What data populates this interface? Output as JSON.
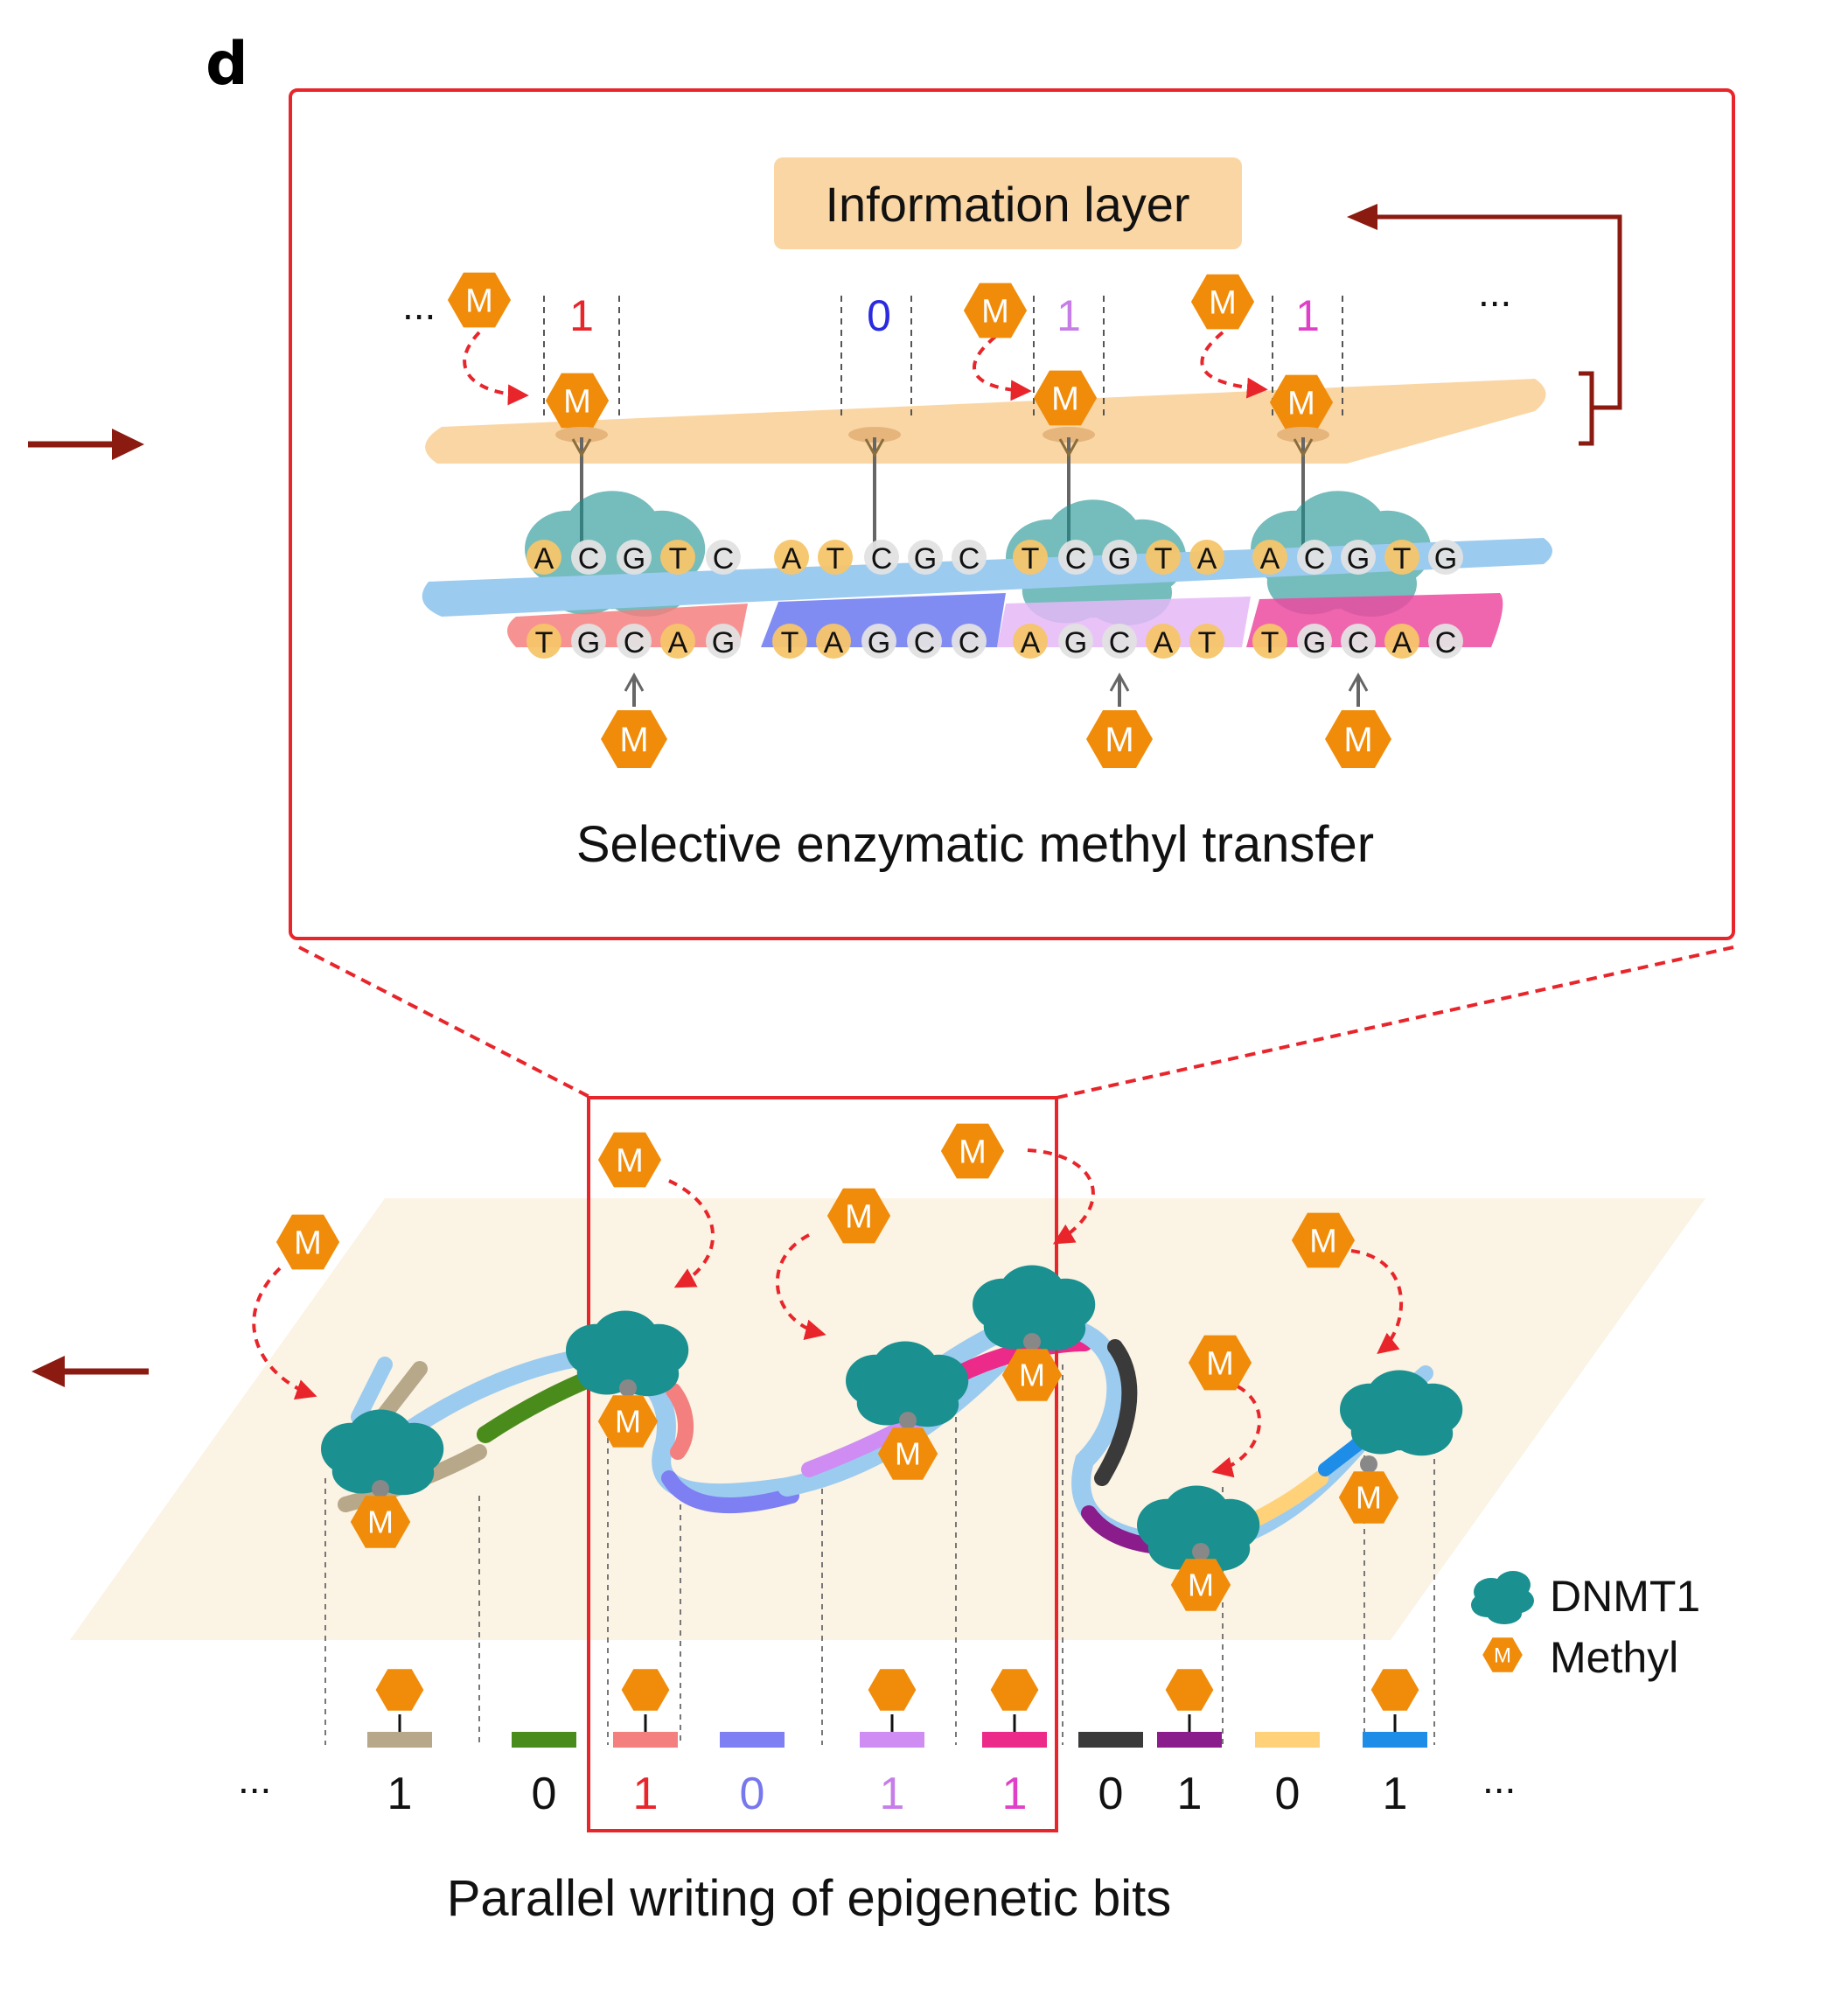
{
  "panel_label": "d",
  "top": {
    "info_layer_label": "Information layer",
    "caption": "Selective enzymatic methyl transfer",
    "ellipsis_left": "...",
    "ellipsis_right": "...",
    "methyl_symbol": "M",
    "bits": [
      {
        "value": "1",
        "color": "#e8252b"
      },
      {
        "value": "0",
        "color": "#2a2ae0"
      },
      {
        "value": "1",
        "color": "#c77de8"
      },
      {
        "value": "1",
        "color": "#e040c8"
      }
    ],
    "top_strand": [
      "A",
      "C",
      "G",
      "T",
      "C",
      "A",
      "T",
      "C",
      "G",
      "C",
      "T",
      "C",
      "G",
      "T",
      "A",
      "A",
      "C",
      "G",
      "T",
      "G"
    ],
    "bottom_strand": [
      "T",
      "G",
      "C",
      "A",
      "G",
      "T",
      "A",
      "G",
      "C",
      "C",
      "A",
      "G",
      "C",
      "A",
      "T",
      "T",
      "G",
      "C",
      "A",
      "C"
    ]
  },
  "bottom": {
    "caption": "Parallel writing of epigenetic bits",
    "ellipsis_left": "...",
    "ellipsis_right": "...",
    "bits": [
      {
        "value": "1",
        "color": "#111111",
        "bar": "#b8a88a",
        "methyl": true
      },
      {
        "value": "0",
        "color": "#111111",
        "bar": "#4a8c1c",
        "methyl": false
      },
      {
        "value": "1",
        "color": "#e8252b",
        "bar": "#f47f7f",
        "methyl": true
      },
      {
        "value": "0",
        "color": "#7777ee",
        "bar": "#7d7ff2",
        "methyl": false
      },
      {
        "value": "1",
        "color": "#c77de8",
        "bar": "#cf8cf2",
        "methyl": true
      },
      {
        "value": "1",
        "color": "#e040c8",
        "bar": "#ec2a8a",
        "methyl": true
      },
      {
        "value": "0",
        "color": "#111111",
        "bar": "#3a3a3a",
        "methyl": false
      },
      {
        "value": "1",
        "color": "#111111",
        "bar": "#8a1c8c",
        "methyl": true
      },
      {
        "value": "0",
        "color": "#111111",
        "bar": "#ffd27a",
        "methyl": false
      },
      {
        "value": "1",
        "color": "#111111",
        "bar": "#1e8de8",
        "methyl": true
      }
    ]
  },
  "legend": {
    "enzyme_label": "DNMT1",
    "methyl_label": "Methyl"
  },
  "colors": {
    "frame": "#e8252b",
    "dark_red_arrow": "#8b1a10",
    "methyl": "#f08c0a",
    "enzyme": "#1a9090",
    "layer": "#fad6a5",
    "plane": "#fbf3e3",
    "dna_backbone": "#9ccbf0"
  }
}
